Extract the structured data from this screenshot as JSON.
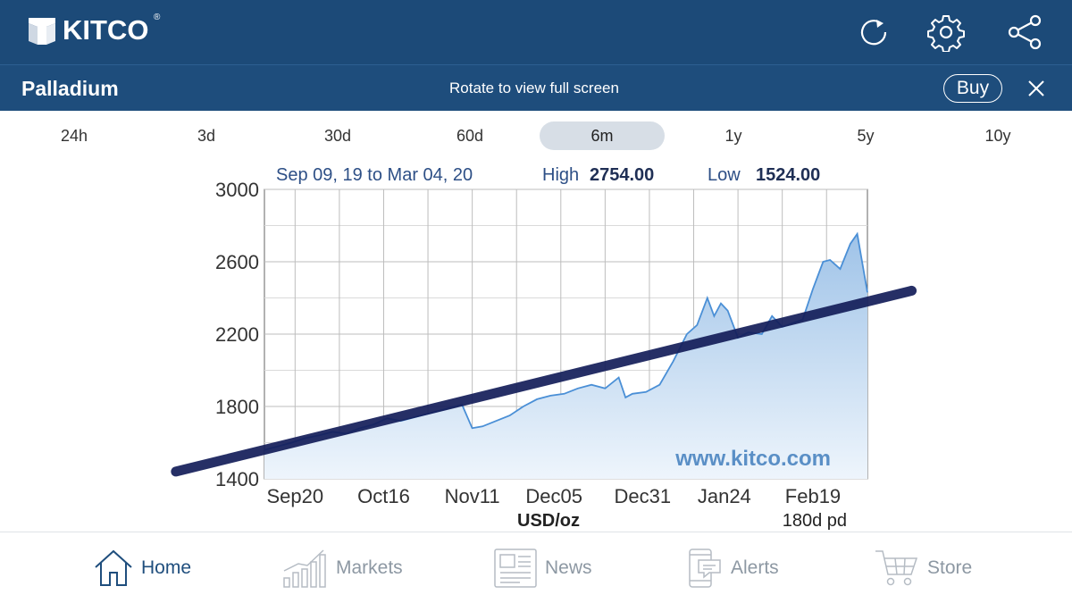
{
  "header": {
    "logo_text": "KITCO",
    "logo_mark": "®",
    "icons": [
      "refresh-icon",
      "gear-icon",
      "share-icon"
    ]
  },
  "subheader": {
    "title": "Palladium",
    "rotate_hint": "Rotate to view full screen",
    "buy_label": "Buy"
  },
  "tabs": [
    {
      "label": "24h",
      "active": false
    },
    {
      "label": "3d",
      "active": false
    },
    {
      "label": "30d",
      "active": false
    },
    {
      "label": "60d",
      "active": false
    },
    {
      "label": "6m",
      "active": true
    },
    {
      "label": "1y",
      "active": false
    },
    {
      "label": "5y",
      "active": false
    },
    {
      "label": "10y",
      "active": false
    }
  ],
  "chart_data": {
    "type": "area",
    "date_range": "Sep 09, 19 to Mar 04, 20",
    "high_label": "High",
    "high_value": "2754.00",
    "low_label": "Low",
    "low_value": "1524.00",
    "xlabel": "USD/oz",
    "period_label": "180d pd",
    "watermark": "www.kitco.com",
    "ylim": [
      1400,
      3000
    ],
    "y_ticks": [
      3000,
      2600,
      2200,
      1800,
      1400
    ],
    "x_tick_labels": [
      "Sep20",
      "Oct16",
      "Nov11",
      "Dec05",
      "Dec31",
      "Jan24",
      "Feb19"
    ],
    "x_tick_days": [
      9,
      35,
      61,
      85,
      111,
      135,
      161
    ],
    "x_range_days": [
      0,
      177
    ],
    "series": [
      {
        "name": "Palladium",
        "x": [
          0,
          4,
          8,
          12,
          16,
          20,
          24,
          28,
          32,
          36,
          40,
          44,
          48,
          52,
          56,
          58,
          61,
          64,
          68,
          72,
          76,
          80,
          84,
          88,
          92,
          96,
          100,
          104,
          106,
          108,
          112,
          116,
          120,
          124,
          127,
          130,
          132,
          134,
          136,
          139,
          142,
          146,
          149,
          152,
          155,
          158,
          161,
          164,
          166,
          169,
          172,
          174,
          177
        ],
        "values": [
          1560,
          1580,
          1600,
          1625,
          1640,
          1660,
          1650,
          1680,
          1700,
          1735,
          1720,
          1740,
          1760,
          1780,
          1800,
          1810,
          1680,
          1690,
          1720,
          1750,
          1800,
          1840,
          1860,
          1870,
          1900,
          1920,
          1900,
          1960,
          1850,
          1870,
          1880,
          1920,
          2050,
          2200,
          2250,
          2400,
          2300,
          2370,
          2330,
          2180,
          2210,
          2200,
          2300,
          2240,
          2260,
          2280,
          2450,
          2600,
          2610,
          2560,
          2700,
          2754,
          2430
        ]
      }
    ],
    "overlay_line": {
      "from": [
        -26,
        1440
      ],
      "to": [
        190,
        2440
      ],
      "color": "#141e5a"
    }
  },
  "colors": {
    "header_bg": "#1c4a78",
    "accent": "#1f4e7d",
    "line": "#4a8fd6",
    "fill_top": "#9fc3e8",
    "fill_bottom": "#eef5fc",
    "inactive_nav": "#8d98a3"
  },
  "nav": [
    {
      "label": "Home",
      "icon": "home-icon",
      "active": true
    },
    {
      "label": "Markets",
      "icon": "markets-icon",
      "active": false
    },
    {
      "label": "News",
      "icon": "news-icon",
      "active": false
    },
    {
      "label": "Alerts",
      "icon": "alerts-icon",
      "active": false
    },
    {
      "label": "Store",
      "icon": "cart-icon",
      "active": false
    }
  ]
}
